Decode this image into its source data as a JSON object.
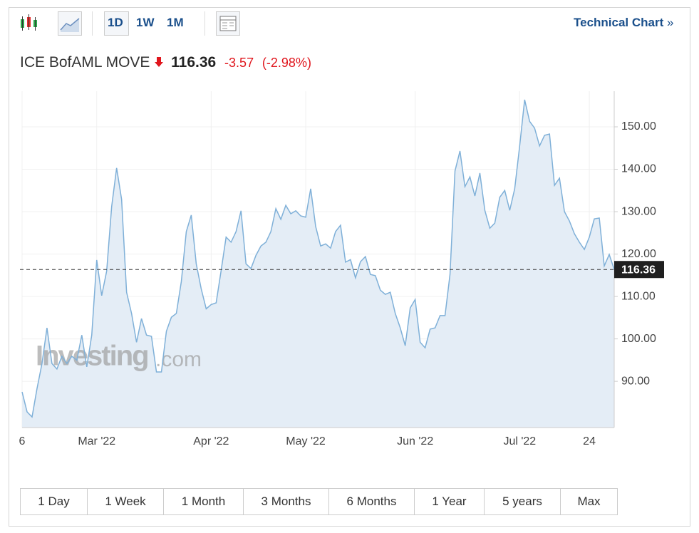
{
  "toolbar": {
    "periods": [
      "1D",
      "1W",
      "1M"
    ],
    "link": "Technical Chart",
    "link_arrow": "»"
  },
  "header": {
    "name": "ICE BofAML MOVE",
    "price": "116.36",
    "change": "-3.57",
    "change_percent": "(-2.98%)"
  },
  "watermark": {
    "brand": "Investing",
    "suffix": ".com"
  },
  "chart_data": {
    "type": "area",
    "color": "#7fb0d8",
    "fill": "#e4edf6",
    "categories": [
      "6",
      null,
      null,
      null,
      null,
      null,
      null,
      null,
      null,
      null,
      null,
      null,
      null,
      null,
      null,
      "Mar '22",
      null,
      null,
      null,
      null,
      null,
      null,
      null,
      null,
      null,
      null,
      null,
      null,
      null,
      null,
      null,
      null,
      null,
      null,
      null,
      null,
      null,
      null,
      "Apr '22",
      null,
      null,
      null,
      null,
      null,
      null,
      null,
      null,
      null,
      null,
      null,
      null,
      null,
      null,
      null,
      null,
      null,
      null,
      "May '22",
      null,
      null,
      null,
      null,
      null,
      null,
      null,
      null,
      null,
      null,
      null,
      null,
      null,
      null,
      null,
      null,
      null,
      null,
      null,
      null,
      null,
      "Jun '22",
      null,
      null,
      null,
      null,
      null,
      null,
      null,
      null,
      null,
      null,
      null,
      null,
      null,
      null,
      null,
      null,
      null,
      null,
      null,
      null,
      "Jul '22",
      null,
      null,
      null,
      null,
      null,
      null,
      null,
      null,
      null,
      null,
      null,
      null,
      null,
      "24",
      null,
      null,
      null,
      null,
      null
    ],
    "values": [
      87.5,
      82.8,
      81.6,
      88.3,
      94.2,
      102.6,
      94.2,
      92.9,
      95.9,
      94.2,
      95.9,
      95,
      100.9,
      93.4,
      100.9,
      118.6,
      110.2,
      116,
      131.2,
      140.3,
      132.9,
      111,
      106,
      99.2,
      104.8,
      100.9,
      100.6,
      92.2,
      92.2,
      101.8,
      105.1,
      106,
      113.5,
      125.3,
      129.2,
      117.7,
      111.8,
      107.1,
      108.1,
      108.5,
      116.1,
      124,
      122.8,
      125.3,
      130.2,
      117.7,
      116.6,
      119.7,
      121.9,
      122.8,
      125.3,
      130.7,
      128.2,
      131.5,
      129.5,
      130.2,
      129,
      128.7,
      135.4,
      126.5,
      121.9,
      122.4,
      121.4,
      125.3,
      126.8,
      118.1,
      118.7,
      114.4,
      118.2,
      119.4,
      115.2,
      114.9,
      111.5,
      110.5,
      111,
      106,
      102.6,
      98.4,
      107.3,
      109.3,
      99.2,
      97.9,
      102.3,
      102.6,
      105.5,
      105.5,
      115.2,
      139.6,
      144.3,
      135.9,
      138.2,
      133.7,
      139.1,
      130.3,
      126.1,
      127.3,
      133.4,
      135,
      130.3,
      135.4,
      145.5,
      156.4,
      151.3,
      149.7,
      145.5,
      148,
      148.3,
      136.2,
      137.9,
      130,
      127.8,
      124.8,
      122.8,
      121.1,
      124,
      128.3,
      128.5,
      117.2,
      119.9,
      116.36
    ],
    "ylim": [
      79.1,
      158.4
    ],
    "yticks": [
      {
        "value": 90,
        "label": "90.00"
      },
      {
        "value": 100,
        "label": "100.00"
      },
      {
        "value": 110,
        "label": "110.00"
      },
      {
        "value": 120,
        "label": "120.00"
      },
      {
        "value": 130,
        "label": "130.00"
      },
      {
        "value": 140,
        "label": "140.00"
      },
      {
        "value": 150,
        "label": "150.00"
      }
    ],
    "grid": true
  },
  "ranges": [
    "1 Day",
    "1 Week",
    "1 Month",
    "3 Months",
    "6 Months",
    "1 Year",
    "5 years",
    "Max"
  ]
}
